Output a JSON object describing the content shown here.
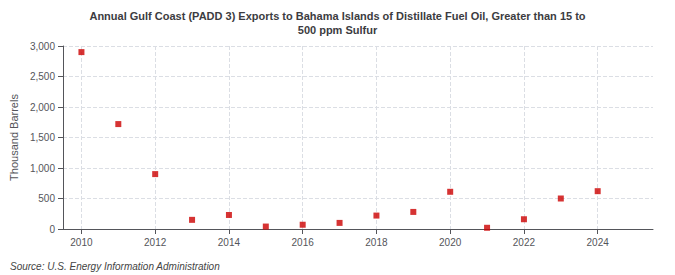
{
  "chart_data": {
    "type": "scatter",
    "title": "Annual Gulf Coast (PADD 3) Exports to Bahama Islands of Distillate Fuel Oil, Greater than 15 to\n500 ppm Sulfur",
    "ylabel": "Thousand Barrels",
    "annotations": [
      "Source: U.S. Energy Information Administration"
    ],
    "x": [
      2010,
      2011,
      2012,
      2013,
      2014,
      2015,
      2016,
      2017,
      2018,
      2019,
      2020,
      2021,
      2022,
      2023,
      2024
    ],
    "values": [
      2900,
      1720,
      900,
      150,
      230,
      40,
      70,
      100,
      220,
      280,
      610,
      20,
      160,
      500,
      620
    ],
    "color": "#cc0000",
    "marker": "square",
    "xlim": [
      2009.5,
      2025.5
    ],
    "xticks": [
      2010,
      2012,
      2014,
      2016,
      2018,
      2020,
      2022,
      2024
    ],
    "ylim": [
      0,
      3000
    ],
    "yticks": [
      0,
      500,
      {
        "value": 1000,
        "label": "1,000"
      },
      {
        "value": 1500,
        "label": "1,500"
      },
      {
        "value": 2000,
        "label": "2,000"
      },
      {
        "value": 2500,
        "label": "2,500"
      },
      {
        "value": 3000,
        "label": "3,000"
      }
    ],
    "grid": true
  }
}
